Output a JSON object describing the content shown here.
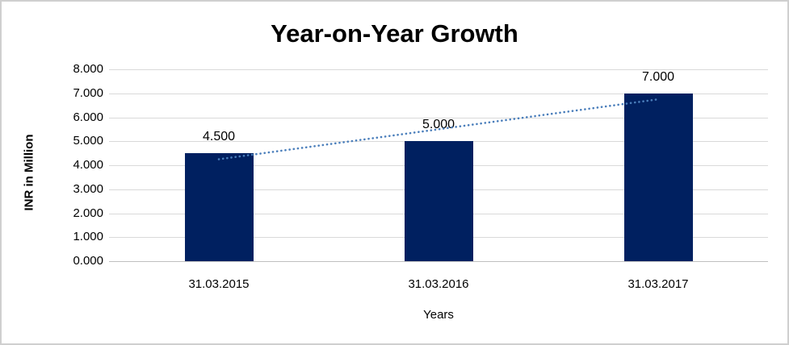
{
  "chart_data": {
    "type": "bar",
    "title": "Year-on-Year Growth",
    "xlabel": "Years",
    "ylabel": "INR in Million",
    "categories": [
      "31.03.2015",
      "31.03.2016",
      "31.03.2017"
    ],
    "values": [
      4.5,
      5.0,
      7.0
    ],
    "bar_labels": [
      "4.500",
      "5.000",
      "7.000"
    ],
    "y_ticks": [
      0,
      1,
      2,
      3,
      4,
      5,
      6,
      7,
      8
    ],
    "y_tick_labels": [
      "0.000",
      "1.000",
      "2.000",
      "3.000",
      "4.000",
      "5.000",
      "6.000",
      "7.000",
      "8.000"
    ],
    "ylim": [
      0,
      8
    ],
    "grid": "horizontal-major",
    "legend": "none",
    "bar_color": "#002060",
    "gridline_color": "#d9d9d9",
    "axis_line_color": "#bfbfbf",
    "trendline": {
      "type": "linear",
      "style": "dotted",
      "color": "#4a7ebb",
      "start_value": 4.25,
      "end_value": 6.75
    }
  }
}
